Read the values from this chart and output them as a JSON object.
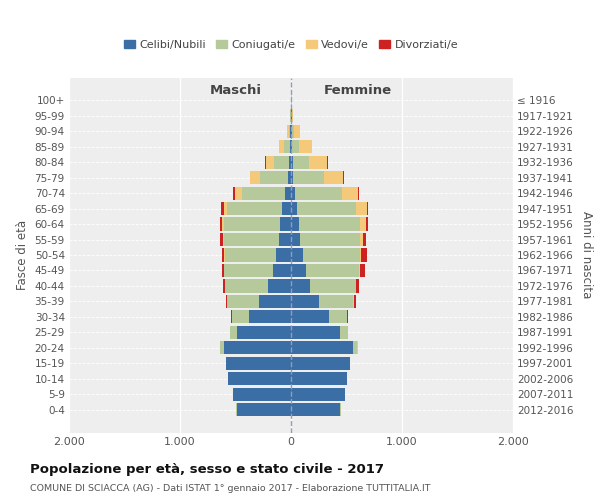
{
  "age_groups": [
    "100+",
    "95-99",
    "90-94",
    "85-89",
    "80-84",
    "75-79",
    "70-74",
    "65-69",
    "60-64",
    "55-59",
    "50-54",
    "45-49",
    "40-44",
    "35-39",
    "30-34",
    "25-29",
    "20-24",
    "15-19",
    "10-14",
    "5-9",
    "0-4"
  ],
  "birth_years": [
    "≤ 1916",
    "1917-1921",
    "1922-1926",
    "1927-1931",
    "1932-1936",
    "1937-1941",
    "1942-1946",
    "1947-1951",
    "1952-1956",
    "1957-1961",
    "1962-1966",
    "1967-1971",
    "1972-1976",
    "1977-1981",
    "1982-1986",
    "1987-1991",
    "1992-1996",
    "1997-2001",
    "2002-2006",
    "2007-2011",
    "2012-2016"
  ],
  "colors": {
    "celibi": "#3A6EA5",
    "coniugati": "#B5C99A",
    "vedovi": "#F5C97A",
    "divorziati": "#CC2222"
  },
  "maschi": {
    "celibi": [
      2,
      4,
      5,
      10,
      18,
      28,
      55,
      85,
      95,
      105,
      135,
      165,
      210,
      290,
      375,
      490,
      605,
      585,
      565,
      525,
      490
    ],
    "coniugati": [
      0,
      2,
      10,
      52,
      135,
      255,
      390,
      490,
      510,
      500,
      460,
      435,
      385,
      285,
      155,
      58,
      32,
      5,
      3,
      2,
      2
    ],
    "vedovi": [
      0,
      3,
      20,
      45,
      72,
      82,
      62,
      32,
      15,
      10,
      5,
      3,
      2,
      2,
      2,
      2,
      3,
      0,
      0,
      0,
      0
    ],
    "divorziati": [
      0,
      0,
      0,
      2,
      5,
      8,
      15,
      22,
      22,
      25,
      25,
      22,
      15,
      10,
      5,
      2,
      2,
      0,
      0,
      0,
      0
    ]
  },
  "femmine": {
    "celibi": [
      2,
      5,
      8,
      10,
      15,
      20,
      38,
      58,
      72,
      82,
      112,
      135,
      175,
      255,
      345,
      445,
      560,
      530,
      505,
      485,
      445
    ],
    "coniugati": [
      0,
      2,
      18,
      58,
      148,
      278,
      418,
      528,
      548,
      538,
      508,
      482,
      408,
      308,
      160,
      65,
      38,
      6,
      3,
      2,
      2
    ],
    "vedovi": [
      3,
      12,
      58,
      118,
      162,
      168,
      148,
      95,
      55,
      28,
      15,
      8,
      5,
      4,
      3,
      3,
      2,
      0,
      0,
      0,
      0
    ],
    "divorziati": [
      0,
      0,
      0,
      2,
      5,
      8,
      10,
      15,
      20,
      30,
      52,
      42,
      25,
      15,
      8,
      3,
      2,
      0,
      0,
      0,
      0
    ]
  },
  "title": "Popolazione per età, sesso e stato civile - 2017",
  "subtitle": "COMUNE DI SCIACCA (AG) - Dati ISTAT 1° gennaio 2017 - Elaborazione TUTTITALIA.IT",
  "ylabel_left": "Fasce di età",
  "ylabel_right": "Anni di nascita",
  "xlabel_maschi": "Maschi",
  "xlabel_femmine": "Femmine",
  "xlim": 2000,
  "bg_color": "#eeeeee"
}
